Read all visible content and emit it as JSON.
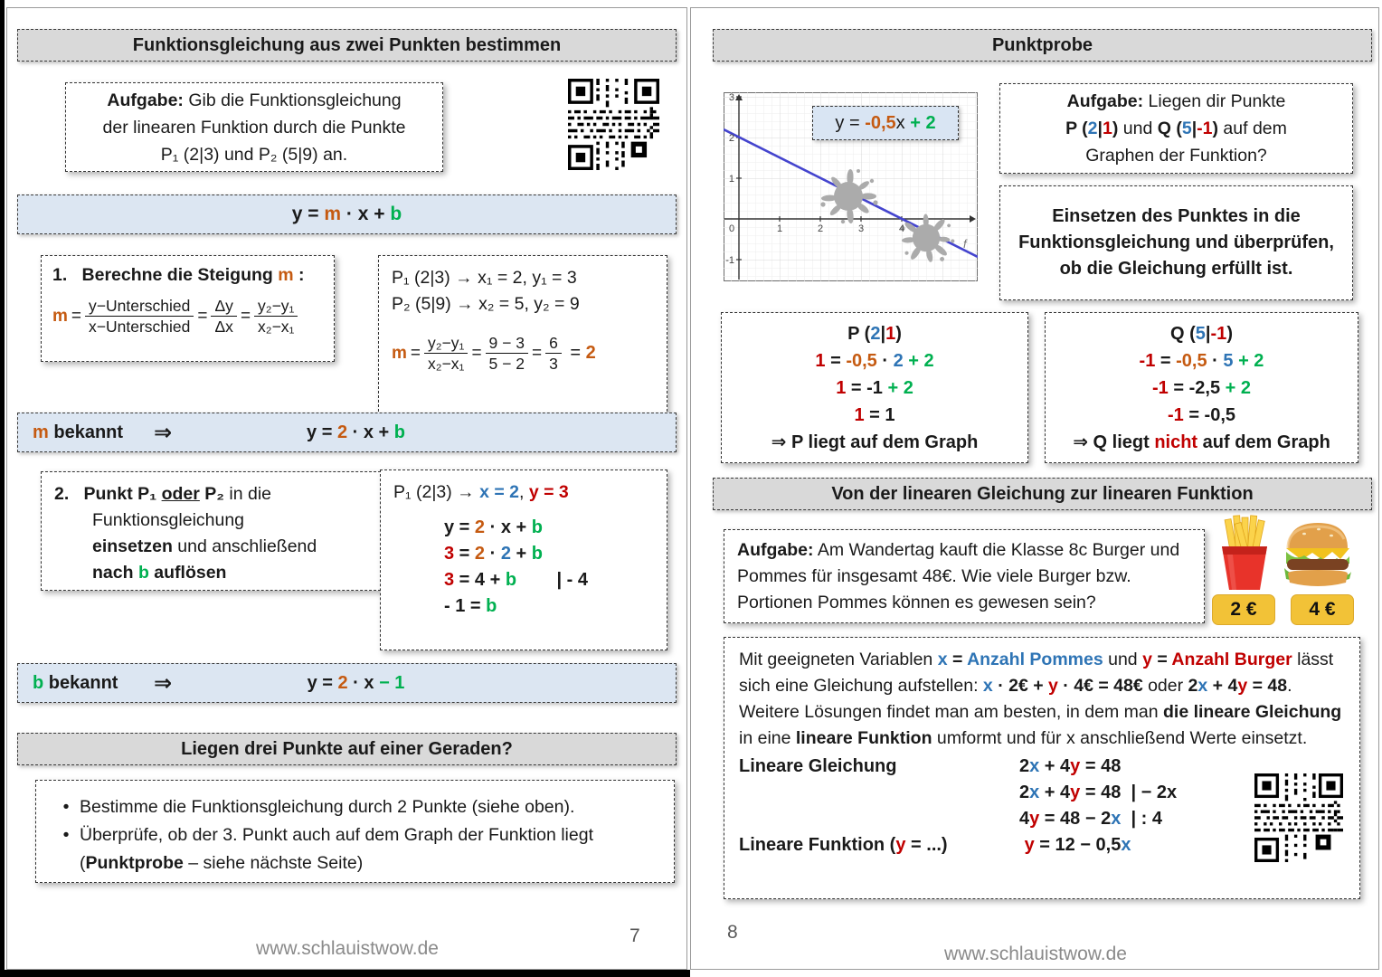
{
  "colors": {
    "orange": "#C55A11",
    "green": "#00B050",
    "blue": "#2E74B5",
    "red": "#C00000",
    "bar_blue": "#DCE6F2",
    "bar_gray": "#D9D9D9"
  },
  "footer": {
    "site": "www.schlauistwow.de",
    "left_page": "7",
    "right_page": "8"
  },
  "left": {
    "header": "Funktionsgleichung aus zwei Punkten bestimmen",
    "task": {
      "line1": [
        {
          "t": "Aufgabe:",
          "s": "bd"
        },
        {
          "t": " Gib die Funktionsgleichung"
        }
      ],
      "line2": [
        {
          "t": "der linearen Funktion durch die Punkte"
        }
      ],
      "line3": [
        {
          "t": "P₁ (2|3) und P₂ (5|9) an."
        }
      ]
    },
    "formula_bar": [
      {
        "t": "y = ",
        "s": "bd"
      },
      {
        "t": "m",
        "s": "o bd"
      },
      {
        "t": " · x + ",
        "s": "bd"
      },
      {
        "t": "b",
        "s": "g bd"
      }
    ],
    "step1": {
      "title": [
        {
          "t": "1.   Berechne die Steigung ",
          "s": "bd"
        },
        {
          "t": "m",
          "s": "o bd"
        },
        {
          "t": " :",
          "s": "bd"
        }
      ],
      "sym": "m",
      "eq1": " = ",
      "f1_num": "y−Unterschied",
      "f1_den": "x−Unterschied",
      "eq2": " = ",
      "f2_num": "Δy",
      "f2_den": "Δx",
      "eq3": " = ",
      "f3_num": "y₂−y₁",
      "f3_den": "x₂−x₁"
    },
    "calc1": {
      "line1": "P₁ (2|3) → x₁ = 2, y₁ = 3",
      "line2": "P₂ (5|9) → x₂ = 5, y₂ = 9",
      "sym": "m",
      "eq1": " = ",
      "f1_num": "y₂−y₁",
      "f1_den": "x₂−x₁",
      "eq2": " = ",
      "f2_num": "9 − 3",
      "f2_den": "5 − 2",
      "eq3": " = ",
      "f3_num": "6",
      "f3_den": "3",
      "result": [
        {
          "t": " = "
        },
        {
          "t": "2",
          "s": "o bd"
        }
      ]
    },
    "bar_m": {
      "label": [
        {
          "t": "m",
          "s": "o bd"
        },
        {
          "t": " bekannt",
          "s": "bd"
        }
      ],
      "arrow": "⇒",
      "eq": [
        {
          "t": "y = ",
          "s": "bd"
        },
        {
          "t": "2",
          "s": "o bd"
        },
        {
          "t": " · x + ",
          "s": "bd"
        },
        {
          "t": "b",
          "s": "g bd"
        }
      ]
    },
    "step2": [
      [
        {
          "t": "2.",
          "s": "bd"
        },
        {
          "t": "   Punkt ",
          "s": "bd"
        },
        {
          "t": "P₁",
          "s": "bd"
        },
        {
          "t": " "
        },
        {
          "t": "oder",
          "s": "bd u"
        },
        {
          "t": " "
        },
        {
          "t": "P₂",
          "s": "bd"
        },
        {
          "t": " in die"
        }
      ],
      [
        {
          "t": "Funktionsgleichung"
        }
      ],
      [
        {
          "t": "einsetzen",
          "s": "bd"
        },
        {
          "t": " und anschließend"
        }
      ],
      [
        {
          "t": "nach ",
          "s": "bd"
        },
        {
          "t": "b",
          "s": "g bd"
        },
        {
          "t": " auflösen",
          "s": "bd"
        }
      ]
    ],
    "calc2": {
      "line1": [
        {
          "t": "P₁ (2|3) → "
        },
        {
          "t": "x = 2",
          "s": "b bd"
        },
        {
          "t": ", "
        },
        {
          "t": "y = 3",
          "s": "r bd"
        }
      ],
      "lines": [
        [
          {
            "t": "y = ",
            "s": "bd"
          },
          {
            "t": "2",
            "s": "o bd"
          },
          {
            "t": " · x + ",
            "s": "bd"
          },
          {
            "t": "b",
            "s": "g bd"
          }
        ],
        [
          {
            "t": "3",
            "s": "r bd"
          },
          {
            "t": " = ",
            "s": "bd"
          },
          {
            "t": "2",
            "s": "o bd"
          },
          {
            "t": " · ",
            "s": "bd"
          },
          {
            "t": "2",
            "s": "b bd"
          },
          {
            "t": " + ",
            "s": "bd"
          },
          {
            "t": "b",
            "s": "g bd"
          }
        ],
        [
          {
            "t": "3",
            "s": "r bd"
          },
          {
            "t": " = 4 + ",
            "s": "bd"
          },
          {
            "t": "b",
            "s": "g bd"
          },
          {
            "t": "        | - 4",
            "s": "bd"
          }
        ],
        [
          {
            "t": "- 1 = ",
            "s": "bd"
          },
          {
            "t": "b",
            "s": "g bd"
          }
        ]
      ]
    },
    "bar_b": {
      "label": [
        {
          "t": "b",
          "s": "g bd"
        },
        {
          "t": " bekannt",
          "s": "bd"
        }
      ],
      "arrow": "⇒",
      "eq": [
        {
          "t": "y = ",
          "s": "bd"
        },
        {
          "t": "2",
          "s": "o bd"
        },
        {
          "t": " · x ",
          "s": "bd"
        },
        {
          "t": "− 1",
          "s": "g bd"
        }
      ]
    },
    "section2": "Liegen drei Punkte auf einer Geraden?",
    "bullets": [
      [
        {
          "t": "Bestimme die Funktionsgleichung durch 2 Punkte (siehe oben)."
        }
      ],
      [
        {
          "t": "Überprüfe, ob der 3. Punkt auch auf dem Graph der Funktion liegt ("
        },
        {
          "t": "Punktprobe",
          "s": "bd"
        },
        {
          "t": " – siehe nächste Seite)"
        }
      ]
    ]
  },
  "right": {
    "header": "Punktprobe",
    "graph": {
      "label": [
        {
          "t": "y = "
        },
        {
          "t": "-0,5",
          "s": "o bd"
        },
        {
          "t": "x ",
          "s": ""
        },
        {
          "t": "+ 2",
          "s": "g bd"
        }
      ],
      "xticks": [
        "0",
        "1",
        "2",
        "3",
        "4"
      ],
      "yticks": [
        "3",
        "2",
        "1",
        "-1"
      ],
      "fname": "f"
    },
    "task": {
      "line1": [
        {
          "t": "Aufgabe:",
          "s": "bd"
        },
        {
          "t": " Liegen dir Punkte"
        }
      ],
      "line2": [
        {
          "t": "P (",
          "s": "bd"
        },
        {
          "t": "2",
          "s": "b bd"
        },
        {
          "t": "|",
          "s": "bd"
        },
        {
          "t": "1",
          "s": "r bd"
        },
        {
          "t": ")",
          "s": "bd"
        },
        {
          "t": " und "
        },
        {
          "t": "Q (",
          "s": "bd"
        },
        {
          "t": "5",
          "s": "b bd"
        },
        {
          "t": "|",
          "s": "bd"
        },
        {
          "t": "-1",
          "s": "r bd"
        },
        {
          "t": ")",
          "s": "bd"
        },
        {
          "t": " auf dem"
        }
      ],
      "line3": [
        {
          "t": "Graphen der Funktion?"
        }
      ]
    },
    "method": "Einsetzen des Punktes in die Funktionsgleichung und überprüfen, ob die Gleichung erfüllt ist.",
    "p_box": [
      [
        {
          "t": "P (",
          "s": "bd"
        },
        {
          "t": "2",
          "s": "b bd"
        },
        {
          "t": "|",
          "s": "bd"
        },
        {
          "t": "1",
          "s": "r bd"
        },
        {
          "t": ")",
          "s": "bd"
        }
      ],
      [
        {
          "t": "1",
          "s": "r bd"
        },
        {
          "t": " = ",
          "s": "bd"
        },
        {
          "t": "-0,5",
          "s": "o bd"
        },
        {
          "t": " · ",
          "s": "bd"
        },
        {
          "t": "2",
          "s": "b bd"
        },
        {
          "t": " + 2",
          "s": "g bd"
        }
      ],
      [
        {
          "t": "1",
          "s": "r bd"
        },
        {
          "t": " = -1 ",
          "s": "bd"
        },
        {
          "t": "+ 2",
          "s": "g bd"
        }
      ],
      [
        {
          "t": "1",
          "s": "r bd"
        },
        {
          "t": " = 1",
          "s": "bd"
        }
      ],
      [
        {
          "t": "⇒ P liegt auf dem Graph",
          "s": "bd"
        }
      ]
    ],
    "q_box": [
      [
        {
          "t": "Q (",
          "s": "bd"
        },
        {
          "t": "5",
          "s": "b bd"
        },
        {
          "t": "|",
          "s": "bd"
        },
        {
          "t": "-1",
          "s": "r bd"
        },
        {
          "t": ")",
          "s": "bd"
        }
      ],
      [
        {
          "t": "-1",
          "s": "r bd"
        },
        {
          "t": " = ",
          "s": "bd"
        },
        {
          "t": "-0,5",
          "s": "o bd"
        },
        {
          "t": " · ",
          "s": "bd"
        },
        {
          "t": "5",
          "s": "b bd"
        },
        {
          "t": " + 2",
          "s": "g bd"
        }
      ],
      [
        {
          "t": "-1",
          "s": "r bd"
        },
        {
          "t": " = -2,5 ",
          "s": "bd"
        },
        {
          "t": "+ 2",
          "s": "g bd"
        }
      ],
      [
        {
          "t": "-1",
          "s": "r bd"
        },
        {
          "t": " = -0,5",
          "s": "bd"
        }
      ],
      [
        {
          "t": "⇒ Q liegt ",
          "s": "bd"
        },
        {
          "t": "nicht",
          "s": "r bd"
        },
        {
          "t": " auf dem Graph",
          "s": "bd"
        }
      ]
    ],
    "section2": "Von der linearen Gleichung zur linearen Funktion",
    "task2": [
      {
        "t": "Aufgabe:",
        "s": "bd"
      },
      {
        "t": " Am Wandertag kauft die Klasse 8c Burger und Pommes für insgesamt 48€. Wie viele Burger bzw. Portionen Pommes können es gewesen sein?"
      }
    ],
    "price_fries": "2 €",
    "price_burger": "4 €",
    "paragraph": [
      {
        "t": "Mit geeigneten Variablen "
      },
      {
        "t": "x",
        "s": "b bd"
      },
      {
        "t": " = ",
        "s": "bd"
      },
      {
        "t": "Anzahl Pommes",
        "s": "b bd"
      },
      {
        "t": " und "
      },
      {
        "t": "y",
        "s": "r bd"
      },
      {
        "t": " = ",
        "s": "bd"
      },
      {
        "t": "Anzahl Burger",
        "s": "r bd"
      },
      {
        "t": " lässt sich eine Gleichung aufstellen: "
      },
      {
        "t": "x",
        "s": "b bd"
      },
      {
        "t": " · 2€ + ",
        "s": "bd"
      },
      {
        "t": "y",
        "s": "r bd"
      },
      {
        "t": " · 4€ = 48€",
        "s": "bd"
      },
      {
        "t": " oder "
      },
      {
        "t": "2",
        "s": "bd"
      },
      {
        "t": "x",
        "s": "b bd"
      },
      {
        "t": " + 4",
        "s": "bd"
      },
      {
        "t": "y",
        "s": "r bd"
      },
      {
        "t": " = 48",
        "s": "bd"
      },
      {
        "t": ". Weitere Lösungen findet man am besten, in dem man "
      },
      {
        "t": "die lineare Gleichung",
        "s": "bd"
      },
      {
        "t": " in eine "
      },
      {
        "t": "lineare Funktion",
        "s": "bd"
      },
      {
        "t": " umformt und für x anschließend Werte einsetzt."
      }
    ],
    "derivation": {
      "label1": "Lineare Gleichung",
      "eq1": [
        {
          "t": "2",
          "s": "bd"
        },
        {
          "t": "x",
          "s": "b bd"
        },
        {
          "t": " + 4",
          "s": "bd"
        },
        {
          "t": "y",
          "s": "r bd"
        },
        {
          "t": " = 48",
          "s": "bd"
        }
      ],
      "eq2": [
        {
          "t": "2",
          "s": "bd"
        },
        {
          "t": "x",
          "s": "b bd"
        },
        {
          "t": " + 4",
          "s": "bd"
        },
        {
          "t": "y",
          "s": "r bd"
        },
        {
          "t": " = 48  | − 2x",
          "s": "bd"
        }
      ],
      "eq3": [
        {
          "t": "4",
          "s": "bd"
        },
        {
          "t": "y",
          "s": "r bd"
        },
        {
          "t": " = 48 − 2",
          "s": "bd"
        },
        {
          "t": "x",
          "s": "b bd"
        },
        {
          "t": "  | : 4",
          "s": "bd"
        }
      ],
      "label2": [
        {
          "t": "Lineare Funktion (",
          "s": "bd"
        },
        {
          "t": "y",
          "s": "r bd"
        },
        {
          "t": " = ...)",
          "s": "bd"
        }
      ],
      "eq4": [
        {
          "t": " y",
          "s": "r bd"
        },
        {
          "t": " = 12 − 0,5",
          "s": "bd"
        },
        {
          "t": "x",
          "s": "b bd"
        }
      ]
    }
  }
}
